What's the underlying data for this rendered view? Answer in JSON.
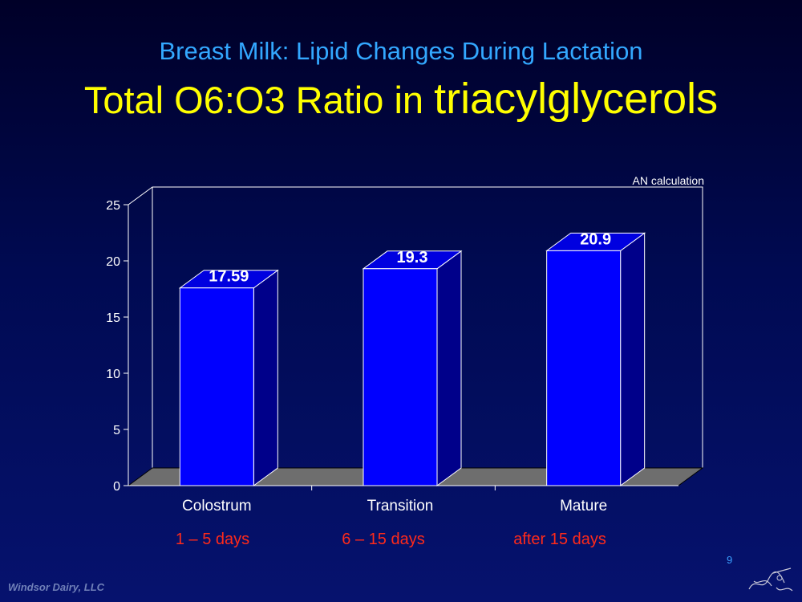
{
  "slide": {
    "subtitle": "Breast Milk: Lipid Changes During Lactation",
    "title_part1": "Total O6:O3 Ratio in ",
    "title_part2": "triacylglycerols",
    "note": "AN  calculation",
    "page_number": "9",
    "footer": "Windsor Dairy, LLC"
  },
  "colors": {
    "bar_front": "#0000ff",
    "bar_top": "#0000e0",
    "bar_side": "#00008a",
    "floor": "#6e6e6e",
    "axis": "#ffffff",
    "period_text": "#ff2a1a"
  },
  "chart_data": {
    "type": "bar",
    "categories": [
      "Colostrum",
      "Transition",
      "Mature"
    ],
    "periods": [
      "1 – 5 days",
      "6 – 15 days",
      "after 15 days"
    ],
    "values": [
      17.59,
      19.3,
      20.9
    ],
    "data_labels": [
      "17.59",
      "19.3",
      "20.9"
    ],
    "ylim": [
      0,
      25
    ],
    "yticks": [
      0,
      5,
      10,
      15,
      20,
      25
    ],
    "grid": false,
    "three_d": true
  }
}
